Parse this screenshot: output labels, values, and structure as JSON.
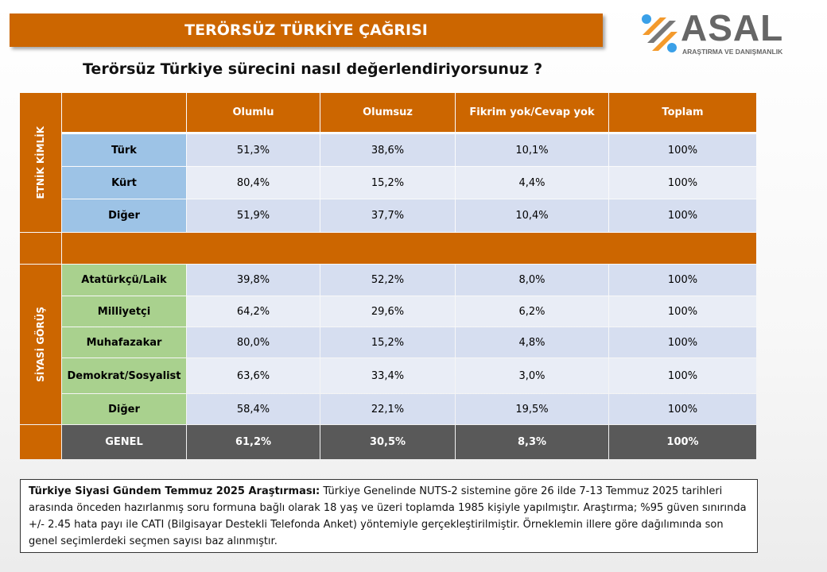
{
  "banner_title": "TERÖRSÜZ TÜRKİYE ÇAĞRISI",
  "logo": {
    "word": "ASAL",
    "subtitle": "ARAŞTIRMA VE DANIŞMANLIK"
  },
  "question": "Terörsüz Türkiye sürecini nasıl değerlendiriyorsunuz ?",
  "table": {
    "headers": [
      "Olumlu",
      "Olumsuz",
      "Fikrim yok/Cevap yok",
      "Toplam"
    ],
    "groups": [
      {
        "label": "ETNİK KİMLİK",
        "rows": [
          {
            "label": "Türk",
            "values": [
              "51,3%",
              "38,6%",
              "10,1%",
              "100%"
            ]
          },
          {
            "label": "Kürt",
            "values": [
              "80,4%",
              "15,2%",
              "4,4%",
              "100%"
            ]
          },
          {
            "label": "Diğer",
            "values": [
              "51,9%",
              "37,7%",
              "10,4%",
              "100%"
            ]
          }
        ]
      },
      {
        "label": "SİYASİ GÖRÜŞ",
        "rows": [
          {
            "label": "Atatürkçü/Laik",
            "values": [
              "39,8%",
              "52,2%",
              "8,0%",
              "100%"
            ]
          },
          {
            "label": "Milliyetçi",
            "values": [
              "64,2%",
              "29,6%",
              "6,2%",
              "100%"
            ]
          },
          {
            "label": "Muhafazakar",
            "values": [
              "80,0%",
              "15,2%",
              "4,8%",
              "100%"
            ]
          },
          {
            "label": "Demokrat/Sosyalist",
            "values": [
              "63,6%",
              "33,4%",
              "3,0%",
              "100%"
            ]
          },
          {
            "label": "Diğer",
            "values": [
              "58,4%",
              "22,1%",
              "19,5%",
              "100%"
            ]
          }
        ]
      }
    ],
    "total": {
      "label": "GENEL",
      "values": [
        "61,2%",
        "30,5%",
        "8,3%",
        "100%"
      ]
    }
  },
  "note": {
    "bold": "Türkiye Siyasi Gündem Temmuz 2025 Araştırması:",
    "text": " Türkiye Genelinde NUTS-2 sistemine göre 26 ilde 7-13 Temmuz 2025 tarihleri arasında önceden hazırlanmış soru formuna bağlı olarak 18 yaş ve üzeri toplamda 1985 kişiyle yapılmıştır. Araştırma; %95 güven sınırında +/- 2.45 hata payı ile CATI (Bilgisayar Destekli Telefonda Anket) yöntemiyle gerçekleştirilmiştir. Örneklemin illere göre dağılımında son genel seçimlerdeki seçmen sayısı baz alınmıştır."
  },
  "colors": {
    "accent": "#CC6600",
    "ethnic_label": "#9DC3E6",
    "political_label": "#A9D18E",
    "total_row": "#595959"
  }
}
